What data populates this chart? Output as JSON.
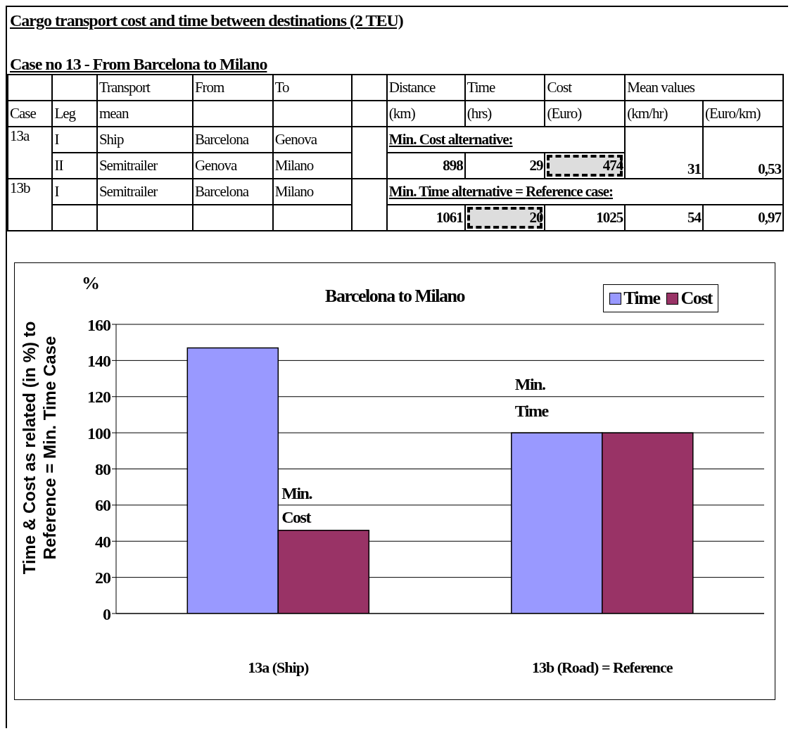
{
  "chart_data": [
    {
      "type": "other",
      "title": "Cargo transport cost and time between destinations (2 TEU)",
      "subtitle": "Case no 13 - From Barcelona to Milano",
      "annotations": [
        "Transport",
        "From",
        "To",
        "Distance",
        "Time",
        "Cost",
        "Mean values",
        "Case",
        "Leg",
        "mean",
        "(km)",
        "(hrs)",
        "(Euro)",
        "(km/hr)",
        "(Euro/km)",
        "13a",
        "I",
        "Ship",
        "Barcelona",
        "Genova",
        "Min. Cost alternative:",
        "II",
        "Semitrailer",
        "Genova",
        "Milano",
        "898",
        "29",
        "474",
        "31",
        "0,53",
        "13b",
        "I",
        "Semitrailer",
        "Barcelona",
        "Milano",
        "Min. Time alternative = Reference case:",
        "1061",
        "20",
        "1025",
        "54",
        "0,97"
      ]
    },
    {
      "type": "bar",
      "title": "Barcelona to Milano",
      "ylabel": "Time & Cost as related  (in %) to Reference = Min. Time Case",
      "categories": [
        "13a (Ship)",
        "13b (Road) = Reference"
      ],
      "series": [
        {
          "name": "Time",
          "color": "#9999ff",
          "values": [
            147,
            100
          ]
        },
        {
          "name": "Cost",
          "color": "#993366",
          "values": [
            46,
            100
          ]
        }
      ],
      "ylim": [
        0,
        160
      ],
      "yticks": [
        0,
        20,
        40,
        60,
        80,
        100,
        120,
        140,
        160
      ],
      "grid": "y",
      "legend": "top right",
      "annotations": [
        "%",
        {
          "text": "Min. Cost",
          "x": "13a (Ship)",
          "y": 46
        },
        "Min. Time"
      ]
    }
  ]
}
